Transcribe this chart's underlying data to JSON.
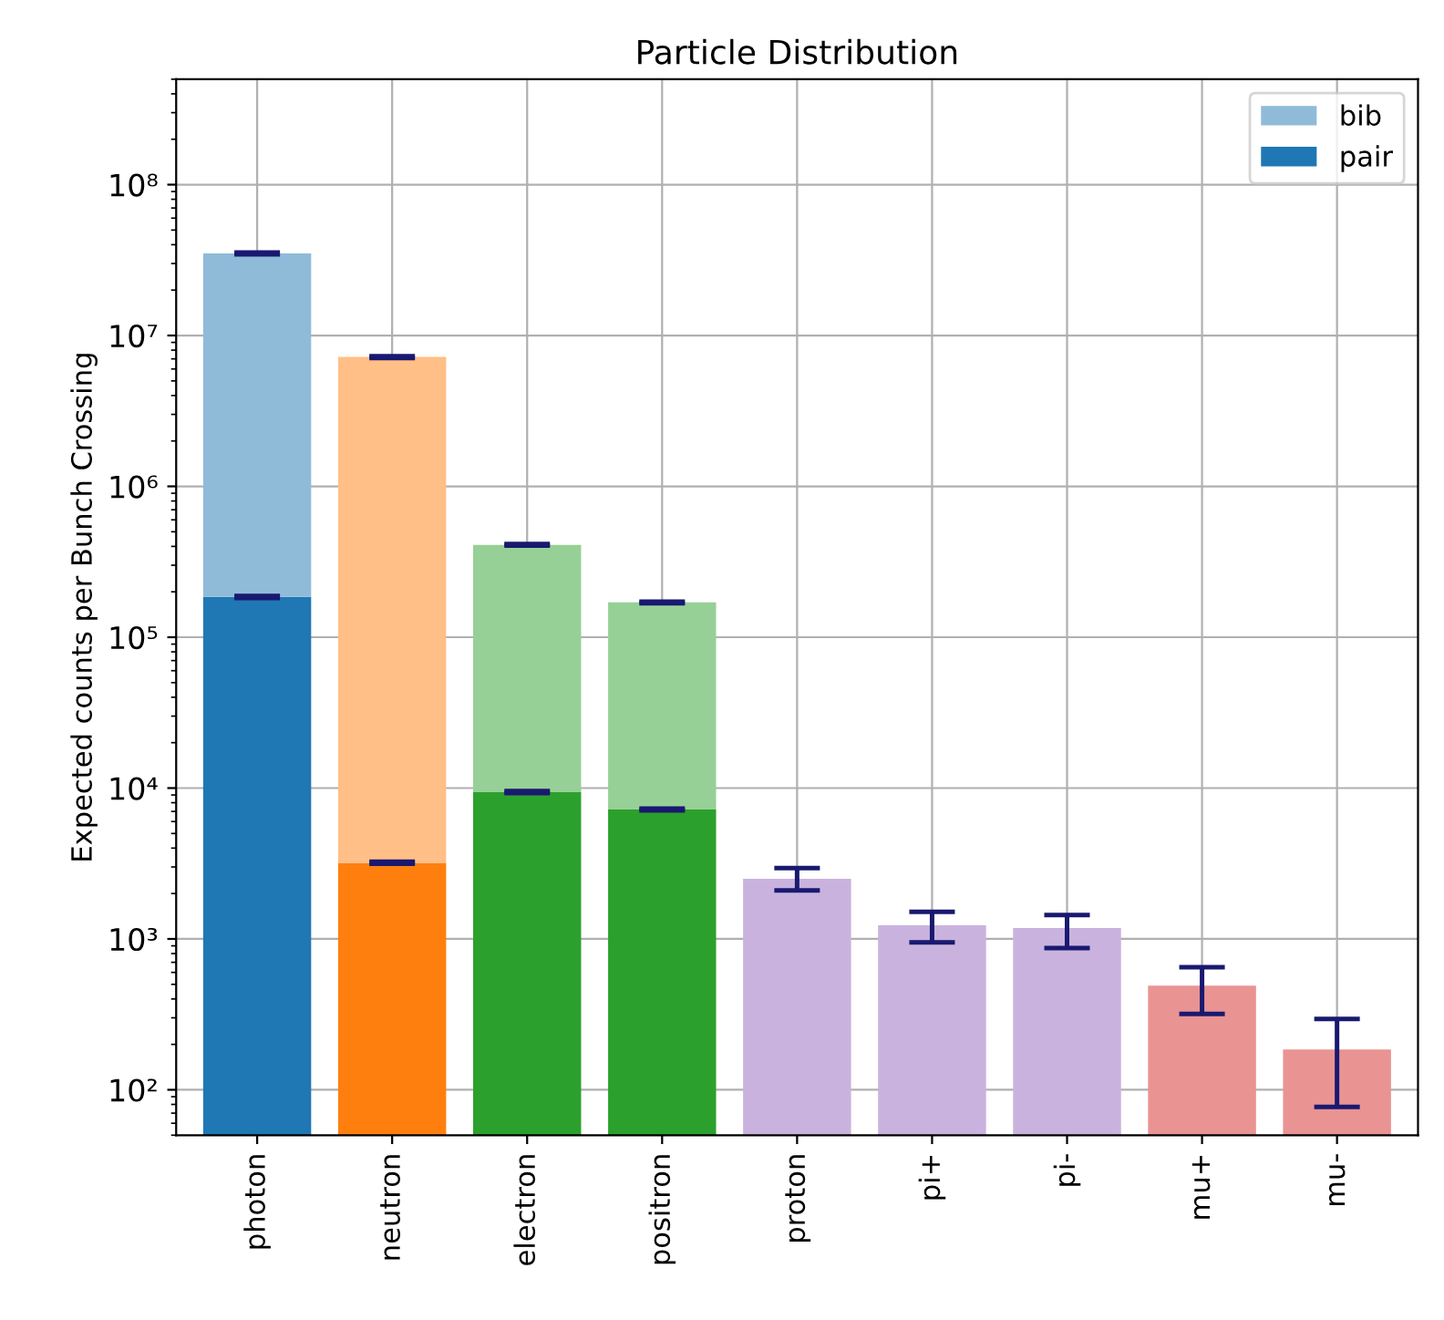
{
  "chart_data": {
    "type": "bar",
    "title": "Particle Distribution",
    "ylabel": "Expected counts per Bunch Crossing",
    "categories": [
      "photon",
      "neutron",
      "electron",
      "positron",
      "proton",
      "pi+",
      "pi-",
      "mu+",
      "mu-"
    ],
    "stacked": true,
    "log": "y",
    "grid": true,
    "legend": "top right",
    "ylim": [
      50,
      500000000
    ],
    "yticks": [
      {
        "value": 100,
        "label": "10²"
      },
      {
        "value": 1000,
        "label": "10³"
      },
      {
        "value": 10000,
        "label": "10⁴"
      },
      {
        "value": 100000,
        "label": "10⁵"
      },
      {
        "value": 1000000,
        "label": "10⁶"
      },
      {
        "value": 10000000,
        "label": "10⁷"
      },
      {
        "value": 100000000,
        "label": "10⁸"
      }
    ],
    "series": [
      {
        "name": "pair",
        "color": "#1f77b4",
        "colors": [
          "#1f77b4",
          "#ff7f0e",
          "#2ca02c",
          "#2ca02c",
          null,
          null,
          null,
          null,
          null
        ],
        "values": [
          185000,
          3200,
          9400,
          7200,
          null,
          null,
          null,
          null,
          null
        ],
        "errors": [
          [
            182000,
            188000
          ],
          [
            3150,
            3250
          ],
          [
            9250,
            9550
          ],
          [
            7100,
            7300
          ],
          null,
          null,
          null,
          null,
          null
        ]
      },
      {
        "name": "bib",
        "color": "#8fbbd9",
        "colors": [
          "#8fbbd9",
          "#ffbf86",
          "#96d096",
          "#96d096",
          "#c9b3de",
          "#c9b3de",
          "#c9b3de",
          "#ea9393",
          "#ea9393"
        ],
        "values": [
          34800000,
          7200000,
          400000,
          163000,
          2500,
          1230,
          1180,
          490,
          185
        ],
        "errors": [
          [
            34500000,
            35500000
          ],
          [
            7100000,
            7300000
          ],
          [
            405000,
            415000
          ],
          [
            168000,
            172000
          ],
          [
            2100,
            2950
          ],
          [
            950,
            1510
          ],
          [
            870,
            1440
          ],
          [
            318,
            650
          ],
          [
            77,
            295
          ]
        ]
      }
    ]
  }
}
